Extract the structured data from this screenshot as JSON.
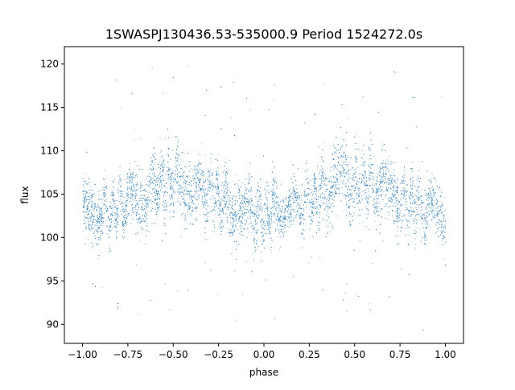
{
  "chart_data": {
    "type": "scatter",
    "title": "1SWASPJ130436.53-535000.9 Period 1524272.0s",
    "xlabel": "phase",
    "ylabel": "flux",
    "xlim": [
      -1.1,
      1.1
    ],
    "ylim": [
      87.8,
      122
    ],
    "xticks": [
      -1.0,
      -0.75,
      -0.5,
      -0.25,
      0.0,
      0.25,
      0.5,
      0.75,
      1.0
    ],
    "xtick_labels": [
      "−1.00",
      "−0.75",
      "−0.50",
      "−0.25",
      "0.00",
      "0.25",
      "0.50",
      "0.75",
      "1.00"
    ],
    "yticks": [
      90,
      95,
      100,
      105,
      110,
      115,
      120
    ],
    "ytick_labels": [
      "90",
      "95",
      "100",
      "105",
      "110",
      "115",
      "120"
    ],
    "grid": false,
    "legend": "none",
    "point_color": "#1f77b4",
    "series": [
      {
        "x": [
          -1.0,
          -0.95,
          -0.9,
          -0.85,
          -0.8,
          -0.75,
          -0.7,
          -0.65,
          -0.6,
          -0.55,
          -0.5,
          -0.45,
          -0.4,
          -0.35,
          -0.3,
          -0.25,
          -0.2,
          -0.15,
          -0.1,
          -0.05,
          0.0,
          0.05,
          0.1,
          0.15,
          0.2,
          0.25,
          0.3,
          0.35,
          0.4,
          0.45,
          0.5,
          0.55,
          0.6,
          0.65,
          0.7,
          0.75,
          0.8,
          0.85,
          0.9,
          0.95,
          1.0
        ],
        "y": [
          102.5,
          103.5,
          103.0,
          102.8,
          103.5,
          104.5,
          105.0,
          105.5,
          106.0,
          106.5,
          106.0,
          106.5,
          106.0,
          105.5,
          105.0,
          104.5,
          104.0,
          103.5,
          103.0,
          102.5,
          102.5,
          103.5,
          103.0,
          102.8,
          103.5,
          104.5,
          105.0,
          105.5,
          106.0,
          106.5,
          106.0,
          106.5,
          106.0,
          105.5,
          105.0,
          104.5,
          104.0,
          103.5,
          103.0,
          102.5,
          102.5
        ],
        "spread": [
          4.0,
          3.5,
          3.0,
          3.0,
          3.0,
          3.5,
          4.0,
          4.0,
          4.0,
          4.5,
          4.5,
          4.5,
          4.0,
          4.0,
          4.0,
          3.5,
          3.5,
          3.5,
          3.5,
          3.5,
          4.0,
          3.5,
          3.0,
          3.0,
          3.0,
          3.5,
          4.0,
          4.0,
          4.0,
          4.5,
          4.5,
          4.5,
          4.0,
          4.0,
          4.0,
          3.5,
          3.5,
          3.5,
          3.5,
          3.5,
          4.0
        ]
      }
    ]
  }
}
